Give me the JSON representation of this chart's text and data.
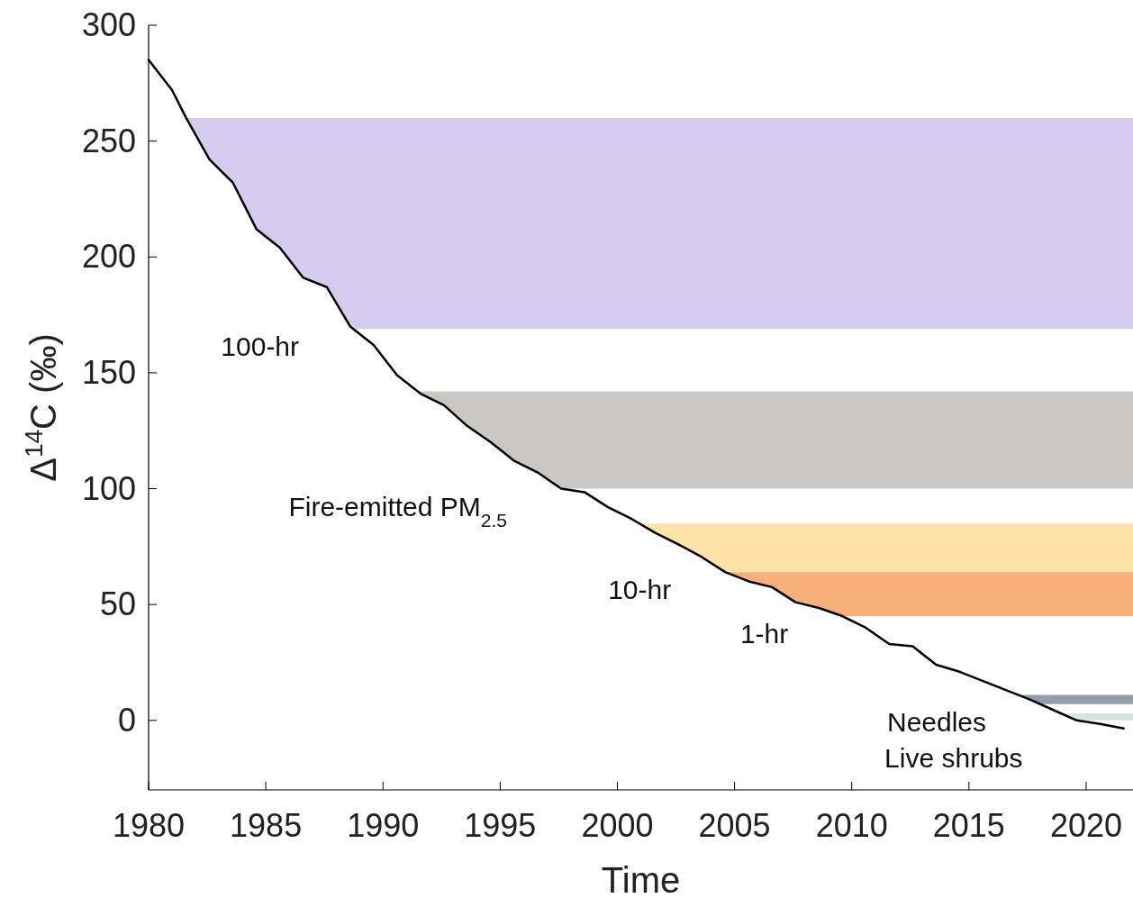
{
  "chart_data": {
    "type": "line",
    "xlabel": "Time",
    "ylabel": "Δ$^{14}$C (‰)",
    "x": [
      1980,
      1981,
      1981.6,
      1982.6,
      1983.6,
      1984.6,
      1985.6,
      1986.6,
      1987.6,
      1988.6,
      1989.6,
      1990.6,
      1991.6,
      1992.6,
      1993.6,
      1994.6,
      1995.6,
      1996.6,
      1997.6,
      1998.6,
      1999.6,
      2000.6,
      2001.6,
      2002.6,
      2003.6,
      2004.6,
      2005.6,
      2006.6,
      2007.6,
      2008.6,
      2009.6,
      2010.6,
      2011.6,
      2012.6,
      2013.6,
      2014.6,
      2015.6,
      2016.6,
      2017.6,
      2018.6,
      2019.6,
      2020.6,
      2021.6
    ],
    "series": [
      {
        "color": "#000000",
        "values": [
          285,
          272,
          260,
          242,
          232,
          212,
          204,
          191,
          187,
          170,
          162,
          149,
          141,
          136,
          127,
          120,
          112,
          107,
          100,
          98.5,
          92,
          87,
          81,
          76,
          70.5,
          64,
          60,
          57.5,
          51,
          48.5,
          45,
          40,
          33,
          32,
          24,
          21,
          17,
          13,
          9,
          4.5,
          0,
          -1.5,
          -3.5
        ]
      }
    ],
    "xlim": [
      1980,
      2022
    ],
    "ylim": [
      -30,
      300
    ],
    "xticks": [
      1980,
      1985,
      1990,
      1995,
      2000,
      2005,
      2010,
      2015,
      2020
    ],
    "yticks": [
      0,
      50,
      100,
      150,
      200,
      250,
      300
    ],
    "grid": false,
    "marker": "none",
    "line_style": "solid",
    "bands": [
      {
        "axis": "y",
        "from": 169,
        "to": 260,
        "color": "#d4cbee",
        "label": "100-hr"
      },
      {
        "axis": "y",
        "from": 100,
        "to": 142,
        "color": "#c8c7c2",
        "label": "Fire-emitted PM$_{2.5}$"
      },
      {
        "axis": "y",
        "from": 64,
        "to": 85,
        "color": "#fee2a8",
        "label": "10-hr"
      },
      {
        "axis": "y",
        "from": 45,
        "to": 64,
        "color": "#f8b07a",
        "label": "1-hr"
      },
      {
        "axis": "y",
        "from": 7,
        "to": 11,
        "color": "#959eab",
        "label": "Needles"
      },
      {
        "axis": "y",
        "from": 0,
        "to": 3,
        "color": "#d5e6da",
        "label": "Live shrubs"
      }
    ]
  }
}
